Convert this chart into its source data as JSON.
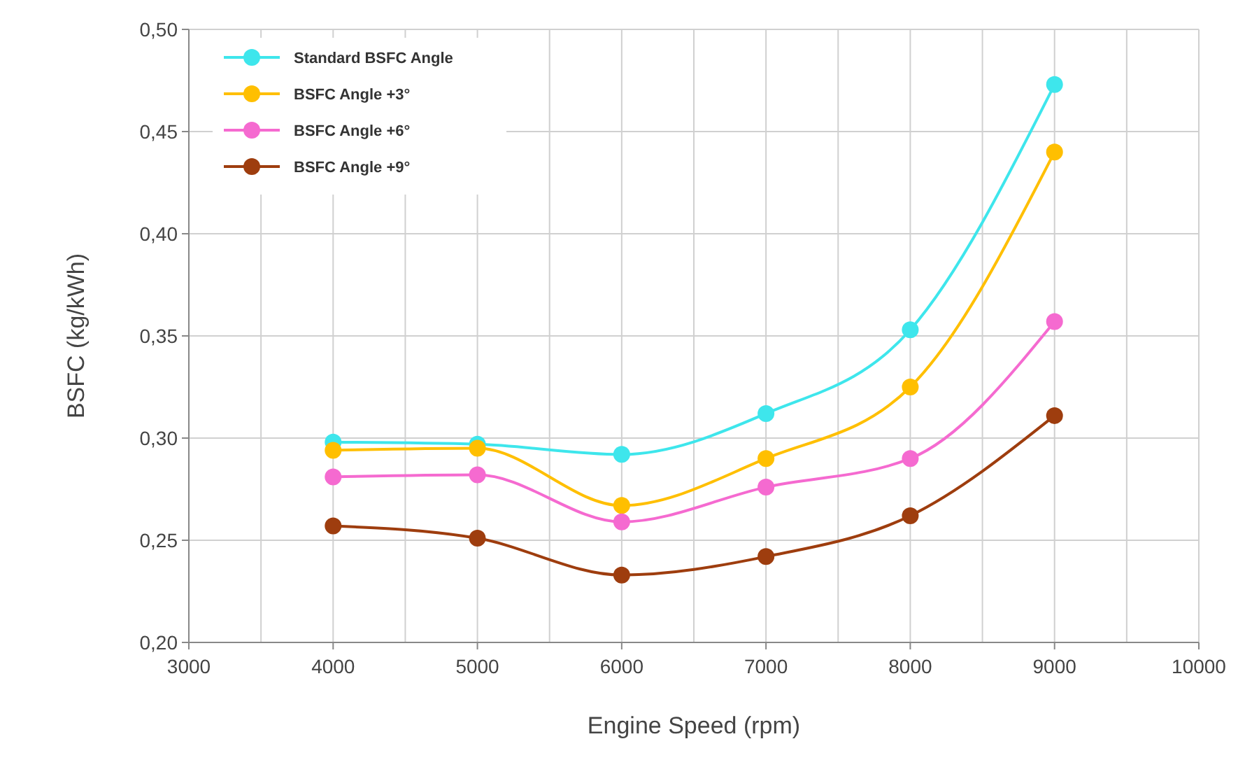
{
  "chart_data": {
    "type": "line",
    "xlabel": "Engine Speed (rpm)",
    "ylabel": "BSFC (kg/kWh)",
    "x": [
      4000,
      5000,
      6000,
      7000,
      8000,
      9000
    ],
    "series": [
      {
        "name": "Standard BSFC Angle",
        "color": "#3ee6ec",
        "values": [
          0.298,
          0.297,
          0.292,
          0.312,
          0.353,
          0.473
        ]
      },
      {
        "name": "BSFC Angle +3°",
        "color": "#ffbf00",
        "values": [
          0.294,
          0.295,
          0.267,
          0.29,
          0.325,
          0.44
        ]
      },
      {
        "name": "BSFC Angle +6°",
        "color": "#f56ad0",
        "values": [
          0.281,
          0.282,
          0.259,
          0.276,
          0.29,
          0.357
        ]
      },
      {
        "name": "BSFC Angle +9°",
        "color": "#9e3d0e",
        "values": [
          0.257,
          0.251,
          0.233,
          0.242,
          0.262,
          0.311
        ]
      }
    ],
    "xlim": [
      3000,
      10000
    ],
    "xticks": [
      3000,
      4000,
      5000,
      6000,
      7000,
      8000,
      9000,
      10000
    ],
    "ylim": [
      0.2,
      0.5
    ],
    "yticks": [
      {
        "value": 0.2,
        "label": "0,20"
      },
      {
        "value": 0.25,
        "label": "0,25"
      },
      {
        "value": 0.3,
        "label": "0,30"
      },
      {
        "value": 0.35,
        "label": "0,35"
      },
      {
        "value": 0.4,
        "label": "0,40"
      },
      {
        "value": 0.45,
        "label": "0,45"
      },
      {
        "value": 0.5,
        "label": "0,50"
      }
    ],
    "grid": true,
    "legend": "top left",
    "marker": "circle",
    "line_style": "solid"
  }
}
